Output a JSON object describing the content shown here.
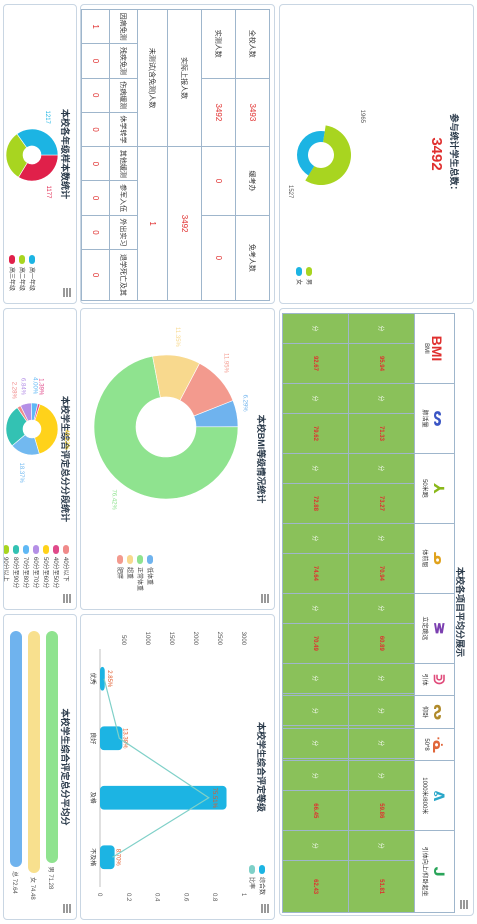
{
  "total": {
    "title": "参与统计学生总数：",
    "value": "3492",
    "gender_labels": [
      "1965",
      "1527"
    ],
    "legend": [
      "男",
      "女"
    ],
    "gender_values": [
      1965,
      1527
    ],
    "colors": [
      "#a8d520",
      "#1cb4e3"
    ]
  },
  "counts": {
    "row1": {
      "label": "全校人数",
      "value": "3493",
      "col3": "缓考办",
      "col4": "免考人数"
    },
    "row2": {
      "label": "实测人数",
      "value": "3492",
      "col3": "0",
      "col4": "0"
    },
    "row3": {
      "label": "实际上报人数",
      "value": "3492"
    },
    "row4": {
      "label": "未测试(含免测)人数",
      "value": "1"
    },
    "status_heads": [
      "因病免测",
      "残疾免测",
      "伤病缓测",
      "休学转学",
      "其他缓测",
      "参军入伍",
      "外出实习",
      "退学死亡及其"
    ],
    "status_vals": [
      "1",
      "0",
      "0",
      "0",
      "0",
      "0",
      "0",
      "0"
    ]
  },
  "grade_pie": {
    "title": "本校各年级样本数统计",
    "labels": [
      "1177",
      "1098",
      "1217"
    ],
    "legend": [
      "高一年级",
      "高二年级",
      "高三年级"
    ]
  },
  "bmi": {
    "title": "本校BMI等级情况统计",
    "labels": [
      "6.29%",
      "76.42%",
      "11.35%",
      "11.95%"
    ],
    "legend": [
      "低体重",
      "正常体重",
      "超重",
      "肥胖"
    ]
  },
  "scores": {
    "title": "本校各项目平均分展示",
    "items": [
      "BMI",
      "肺活量",
      "50米跑",
      "体前屈",
      "立定跳远",
      "引体",
      "仰卧",
      "50*8",
      "1000米/800米",
      "引体向上/仰卧起坐"
    ],
    "unit": "分",
    "row1": [
      "95.94",
      "71.33",
      "73.27",
      "70.94",
      "60.89",
      "",
      "",
      "",
      "59.86",
      "51.81"
    ],
    "row2": [
      "92.67",
      "79.62",
      "72.88",
      "74.64",
      "70.49",
      "",
      "",
      "",
      "66.45",
      "62.43"
    ]
  },
  "grade_dist": {
    "title": "本校学生综合评定总分分段统计",
    "labels": [
      "40.22%",
      "18.37%",
      "26.40%",
      "2.28%",
      "6.84%",
      "4.00%",
      "1.39%"
    ],
    "legend": [
      "40分以下",
      "40分至50分",
      "50分至60分",
      "60分至70分",
      "70分至80分",
      "80分至90分",
      "90分以上"
    ]
  },
  "grade_level": {
    "title": "本校学生综合评定等级",
    "y_ticks": [
      "3000",
      "2500",
      "2000",
      "1500",
      "1000",
      "500"
    ],
    "y2_ticks": [
      "1",
      "0.8",
      "0.6",
      "0.4",
      "0.2",
      "0"
    ],
    "bars": [
      {
        "label": "优秀",
        "pct": "2.85%"
      },
      {
        "label": "良好",
        "pct": "13.38%"
      },
      {
        "label": "及格",
        "pct": "75.51%"
      },
      {
        "label": "不及格",
        "pct": "8.70%"
      }
    ],
    "legend": [
      "综合数",
      "比率"
    ]
  },
  "avg_score": {
    "title": "本校学生综合评定总分平均分",
    "bars": [
      {
        "label": "男 71.28"
      },
      {
        "label": "女 74.48"
      },
      {
        "label": "总 72.64"
      }
    ]
  },
  "chart_data": [
    {
      "type": "pie",
      "title": "参与统计学生总数：",
      "categories": [
        "男",
        "女"
      ],
      "values": [
        1965,
        1527
      ]
    },
    {
      "type": "pie",
      "title": "本校各年级样本数统计",
      "categories": [
        "高一年级",
        "高二年级",
        "高三年级"
      ],
      "values": [
        1177,
        1098,
        1217
      ]
    },
    {
      "type": "pie",
      "title": "本校BMI等级情况统计",
      "categories": [
        "低体重",
        "正常体重",
        "超重",
        "肥胖"
      ],
      "values": [
        6.29,
        76.42,
        11.35,
        11.95
      ]
    },
    {
      "type": "pie",
      "title": "本校学生综合评定总分分段统计",
      "categories": [
        "40分以下",
        "40分至50分",
        "50分至60分",
        "60分至70分",
        "70分至80分",
        "80分至90分",
        "90分以上"
      ],
      "values": [
        1.39,
        4.0,
        6.84,
        2.28,
        26.4,
        40.22,
        18.37
      ]
    },
    {
      "type": "bar",
      "title": "本校学生综合评定等级",
      "categories": [
        "优秀",
        "良好",
        "及格",
        "不及格"
      ],
      "values": [
        99,
        467,
        2636,
        304
      ],
      "rates": [
        2.85,
        13.38,
        75.51,
        8.7
      ],
      "ylim": [
        0,
        3000
      ]
    },
    {
      "type": "bar",
      "title": "本校学生综合评定总分平均分",
      "categories": [
        "男",
        "女",
        "总"
      ],
      "values": [
        71.28,
        74.48,
        72.64
      ]
    }
  ]
}
